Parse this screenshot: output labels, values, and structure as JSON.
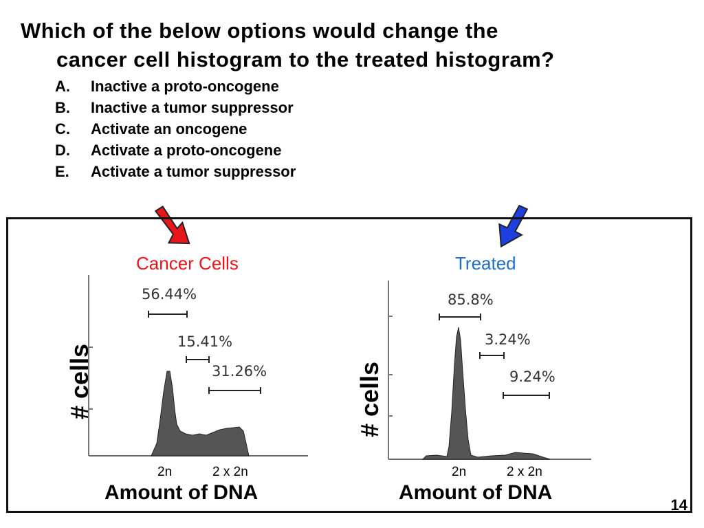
{
  "question": {
    "line1": "Which of the below options would change the",
    "line2": "cancer cell histogram to the treated histogram?"
  },
  "options": [
    {
      "letter": "A.",
      "text": "Inactive a proto-oncogene"
    },
    {
      "letter": "B.",
      "text": "Inactive a tumor suppressor"
    },
    {
      "letter": "C.",
      "text": "Activate an oncogene"
    },
    {
      "letter": "D.",
      "text": "Activate a proto-oncogene"
    },
    {
      "letter": "E.",
      "text": "Activate a tumor suppressor"
    }
  ],
  "panels": {
    "cancer": {
      "title": "Cancer Cells",
      "title_color": "#e8161b",
      "arrow_color": "#e8161b",
      "ylabel": "# cells",
      "gates": [
        "56.44%",
        "15.41%",
        "31.26%"
      ],
      "tick_2n": "2n",
      "tick_4n": "2 x 2n",
      "xlabel": "Amount of DNA"
    },
    "treated": {
      "title": "Treated",
      "title_color": "#1f6fc2",
      "arrow_color": "#1d3fe0",
      "ylabel": "# cells",
      "gates": [
        "85.8%",
        "3.24%",
        "9.24%"
      ],
      "tick_2n": "2n",
      "tick_4n": "2 x 2n",
      "xlabel": "Amount of DNA"
    }
  },
  "slide_number": "14"
}
